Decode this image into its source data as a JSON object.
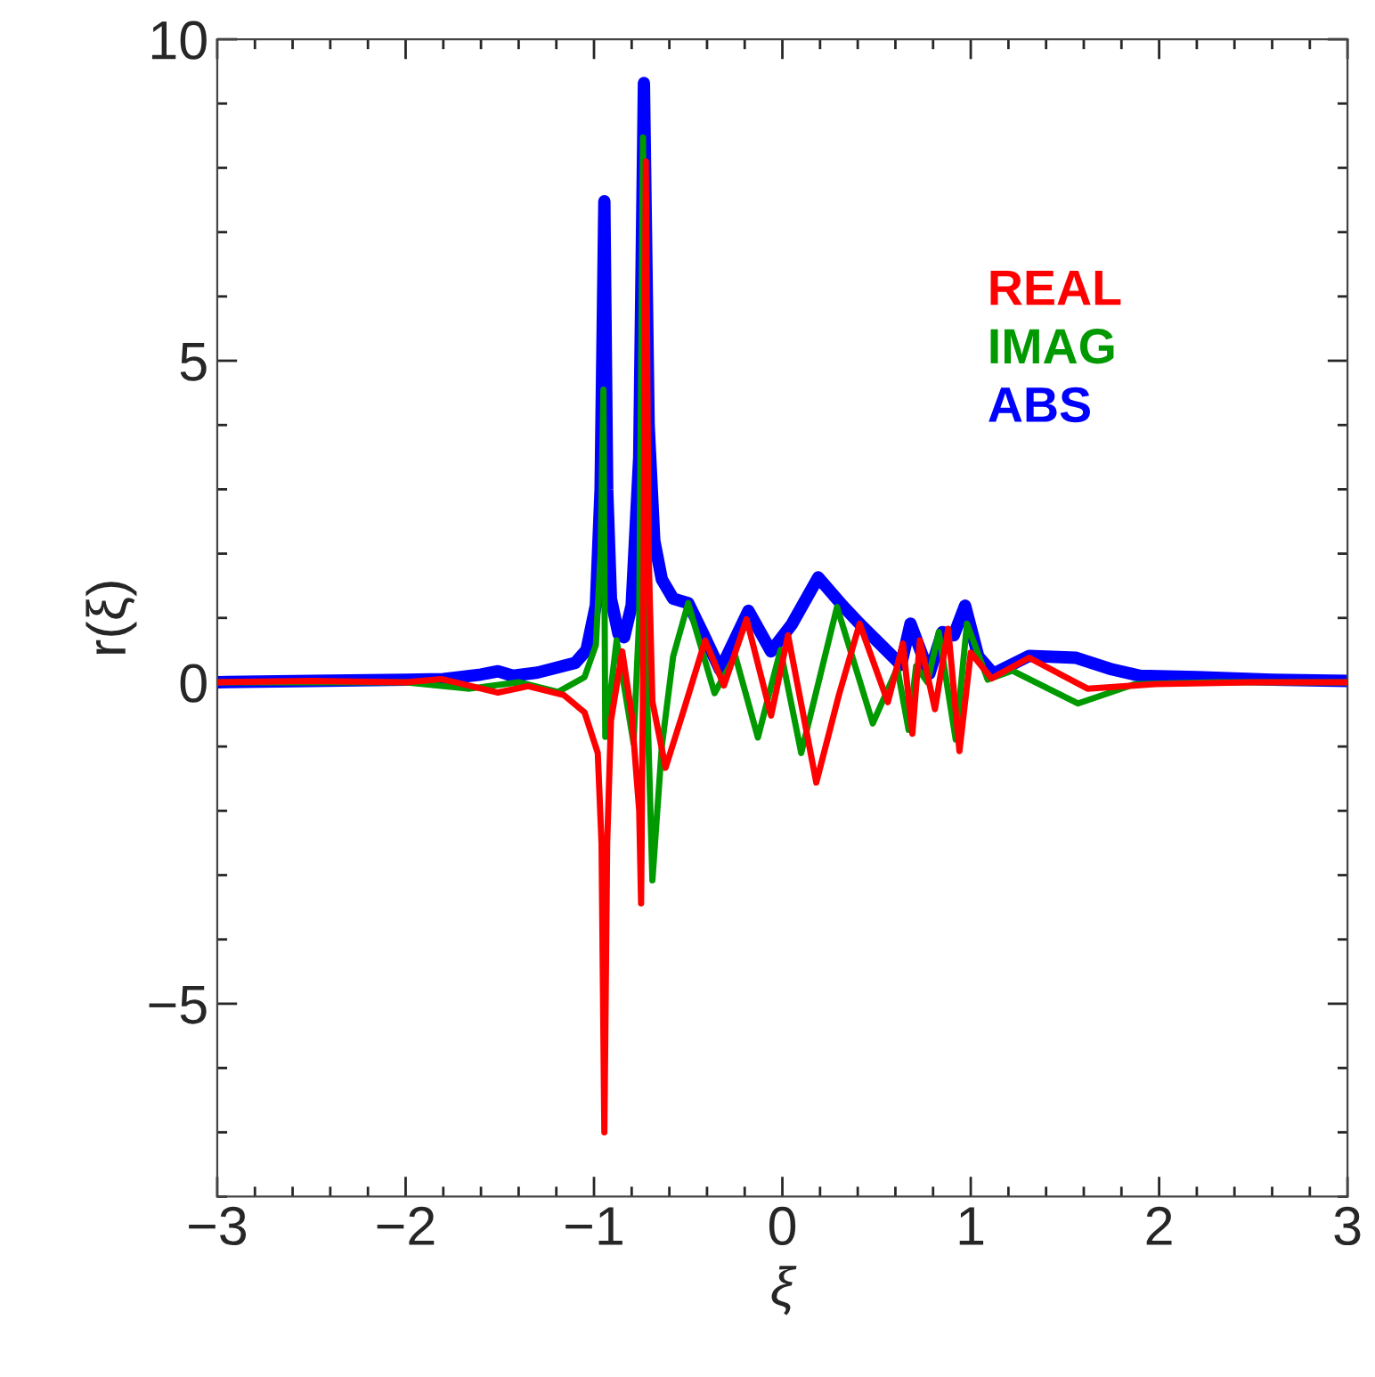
{
  "chart_data": {
    "type": "line",
    "xlabel": "ξ",
    "ylabel": "r(ξ)",
    "xlim": [
      -3,
      3
    ],
    "ylim": [
      -8,
      10
    ],
    "xticks": [
      {
        "value": -3,
        "label": "−3"
      },
      {
        "value": -2,
        "label": "−2"
      },
      {
        "value": -1,
        "label": "−1"
      },
      0,
      1,
      2,
      3
    ],
    "yticks": [
      {
        "value": -5,
        "label": "−5"
      },
      0,
      5,
      10
    ],
    "grid": false,
    "legend": "top right",
    "marker": "none",
    "line_style": "solid",
    "series": [
      {
        "name": "REAL",
        "color": "#ff0000",
        "x": [
          -3,
          -2.5,
          -2.0,
          -1.81,
          -1.51,
          -1.35,
          -1.16,
          -1.05,
          -0.98,
          -0.96,
          -0.945,
          -0.93,
          -0.91,
          -0.85,
          -0.8,
          -0.76,
          -0.75,
          -0.74,
          -0.725,
          -0.71,
          -0.69,
          -0.62,
          -0.52,
          -0.41,
          -0.31,
          -0.19,
          -0.06,
          0.03,
          0.18,
          0.3,
          0.41,
          0.56,
          0.64,
          0.69,
          0.73,
          0.81,
          0.88,
          0.94,
          1.0,
          1.11,
          1.31,
          1.62,
          1.98,
          2.5,
          3
        ],
        "values": [
          0,
          0.02,
          0.0,
          0.05,
          -0.16,
          -0.06,
          -0.2,
          -0.47,
          -1.1,
          -2.5,
          -7.0,
          -2.5,
          -0.6,
          0.48,
          -0.5,
          -2.0,
          -3.44,
          0.0,
          8.1,
          2.0,
          -0.3,
          -1.33,
          -0.4,
          0.65,
          -0.05,
          0.98,
          -0.52,
          0.73,
          -1.56,
          -0.2,
          0.91,
          -0.31,
          0.6,
          -0.8,
          0.65,
          -0.42,
          0.83,
          -1.07,
          0.46,
          0.06,
          0.38,
          -0.1,
          -0.03,
          0.0,
          0
        ]
      },
      {
        "name": "IMAG",
        "color": "#009900",
        "x": [
          -3,
          -2.5,
          -2.0,
          -1.66,
          -1.4,
          -1.19,
          -1.05,
          -0.99,
          -0.965,
          -0.95,
          -0.94,
          -0.88,
          -0.79,
          -0.76,
          -0.74,
          -0.72,
          -0.69,
          -0.64,
          -0.58,
          -0.5,
          -0.36,
          -0.25,
          -0.13,
          -0.01,
          0.1,
          0.29,
          0.48,
          0.61,
          0.67,
          0.71,
          0.77,
          0.83,
          0.92,
          0.98,
          1.09,
          1.22,
          1.57,
          1.87,
          2.3,
          3
        ],
        "values": [
          0,
          0.0,
          0.0,
          -0.1,
          0.0,
          -0.15,
          0.08,
          0.58,
          2.0,
          4.55,
          -0.85,
          0.65,
          -0.95,
          1.0,
          8.47,
          0.0,
          -3.08,
          -1.0,
          0.4,
          1.23,
          -0.17,
          0.41,
          -0.86,
          0.5,
          -1.1,
          1.17,
          -0.64,
          0.22,
          -0.74,
          0.25,
          0.0,
          0.78,
          -0.89,
          0.91,
          0.04,
          0.18,
          -0.33,
          -0.03,
          0.0,
          0
        ]
      },
      {
        "name": "ABS",
        "color": "#0000ff",
        "x": [
          -3,
          -2.5,
          -2.0,
          -1.8,
          -1.6,
          -1.51,
          -1.43,
          -1.3,
          -1.1,
          -1.04,
          -0.99,
          -0.965,
          -0.945,
          -0.93,
          -0.91,
          -0.87,
          -0.84,
          -0.8,
          -0.76,
          -0.735,
          -0.71,
          -0.68,
          -0.64,
          -0.58,
          -0.5,
          -0.42,
          -0.33,
          -0.18,
          -0.06,
          0.05,
          0.19,
          0.32,
          0.41,
          0.63,
          0.68,
          0.78,
          0.85,
          0.91,
          0.97,
          1.04,
          1.12,
          1.31,
          1.56,
          1.75,
          1.9,
          2.2,
          2.6,
          3
        ],
        "values": [
          0.0,
          0.02,
          0.04,
          0.05,
          0.12,
          0.17,
          0.1,
          0.15,
          0.3,
          0.5,
          1.2,
          3.0,
          7.48,
          3.0,
          1.3,
          0.75,
          0.7,
          1.2,
          3.5,
          9.32,
          4.0,
          2.2,
          1.6,
          1.3,
          1.23,
          0.75,
          0.19,
          1.11,
          0.48,
          0.9,
          1.63,
          1.19,
          0.91,
          0.27,
          0.91,
          0.13,
          0.78,
          0.73,
          1.19,
          0.4,
          0.13,
          0.41,
          0.38,
          0.2,
          0.1,
          0.08,
          0.04,
          0.02
        ]
      }
    ]
  }
}
